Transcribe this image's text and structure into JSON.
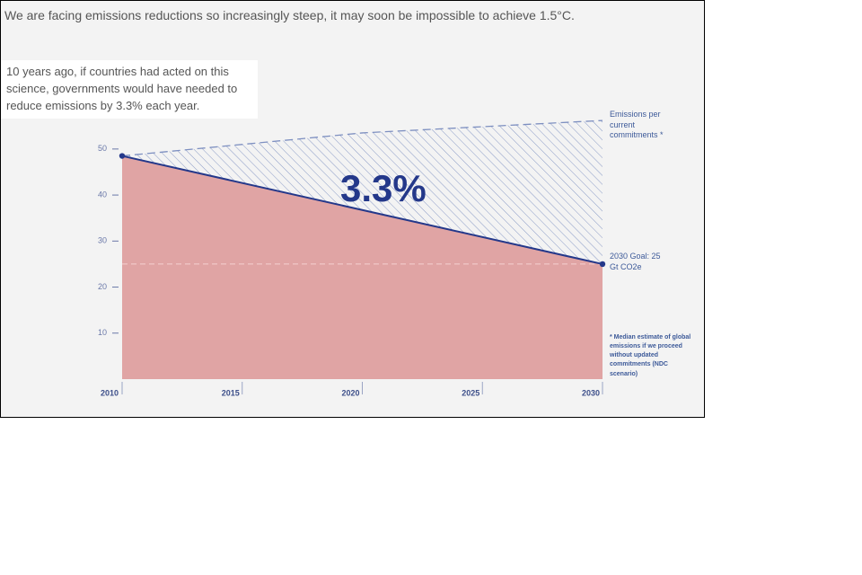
{
  "chart_data": {
    "type": "area",
    "title": "We are facing emissions reductions so increasingly steep, it may soon be impossible to achieve 1.5°C.",
    "annotation": "10 years ago, if countries had acted on this science, governments would have needed to reduce emissions by 3.3% each year.",
    "rate_label": "3.3%",
    "x": [
      2010,
      2020,
      2030
    ],
    "series": [
      {
        "name": "Emissions per current commitments *",
        "color": "#7d8fc0",
        "values": [
          48.5,
          53.5,
          56.2
        ]
      },
      {
        "color": "#24388a",
        "values": [
          48.5,
          36.75,
          25
        ]
      }
    ],
    "area_color": "#e0a4a4",
    "goal": {
      "value": 25,
      "label": "2030 Goal: 25 Gt CO2e"
    },
    "footnote": "* Median estimate of global emissions if we proceed without updated commitments (NDC scenario)",
    "xlim": [
      2010,
      2030
    ],
    "xticks": [
      2010,
      2015,
      2020,
      2025,
      2030
    ],
    "ylim": [
      0,
      57
    ],
    "yticks": [
      10,
      20,
      30,
      40,
      50
    ]
  }
}
